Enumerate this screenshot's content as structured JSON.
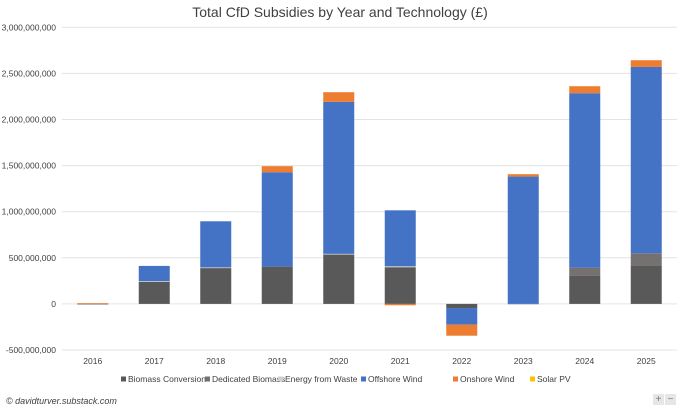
{
  "chart_data": {
    "type": "bar",
    "stacked": true,
    "title": "Total CfD Subsidies by Year and Technology (£)",
    "xlabel": "",
    "ylabel": "",
    "ylim": [
      -500000000,
      3000000000
    ],
    "yticks": [
      -500000000,
      0,
      500000000,
      1000000000,
      1500000000,
      2000000000,
      2500000000,
      3000000000
    ],
    "ytick_labels": [
      "-500,000,000",
      "0",
      "500,000,000",
      "1,000,000,000",
      "1,500,000,000",
      "2,000,000,000",
      "2,500,000,000",
      "3,000,000,000"
    ],
    "grid": true,
    "legend_position": "bottom",
    "categories": [
      "2016",
      "2017",
      "2018",
      "2019",
      "2020",
      "2021",
      "2022",
      "2023",
      "2024",
      "2025"
    ],
    "series": [
      {
        "name": "Biomass Conversion",
        "color": "#595959",
        "values": [
          3000000,
          242000000,
          393000000,
          404000000,
          538000000,
          398000000,
          -45000000,
          0,
          303000000,
          419000000
        ]
      },
      {
        "name": "Dedicated Biomass",
        "color": "#767171",
        "values": [
          0,
          0,
          0,
          0,
          0,
          0,
          0,
          0,
          90000000,
          130000000
        ]
      },
      {
        "name": "Energy from Waste",
        "color": "#d0cece",
        "values": [
          0,
          5000000,
          3000000,
          0,
          5000000,
          10000000,
          0,
          -10000000,
          0,
          0
        ]
      },
      {
        "name": "Offshore Wind",
        "color": "#4472c4",
        "values": [
          0,
          165000000,
          500000000,
          1024000000,
          1648000000,
          607000000,
          -180000000,
          1381000000,
          1892000000,
          2021000000
        ]
      },
      {
        "name": "Onshore Wind",
        "color": "#ed7d31",
        "values": [
          5000000,
          0,
          0,
          66000000,
          105000000,
          -15000000,
          -120000000,
          26000000,
          76000000,
          73000000
        ]
      },
      {
        "name": "Solar PV",
        "color": "#ffc000",
        "values": [
          0,
          0,
          0,
          0,
          0,
          0,
          0,
          0,
          0,
          0
        ]
      }
    ]
  },
  "footer": {
    "credit": "© davidturver.substack.com",
    "zoom_in": "+",
    "zoom_out": "−"
  }
}
